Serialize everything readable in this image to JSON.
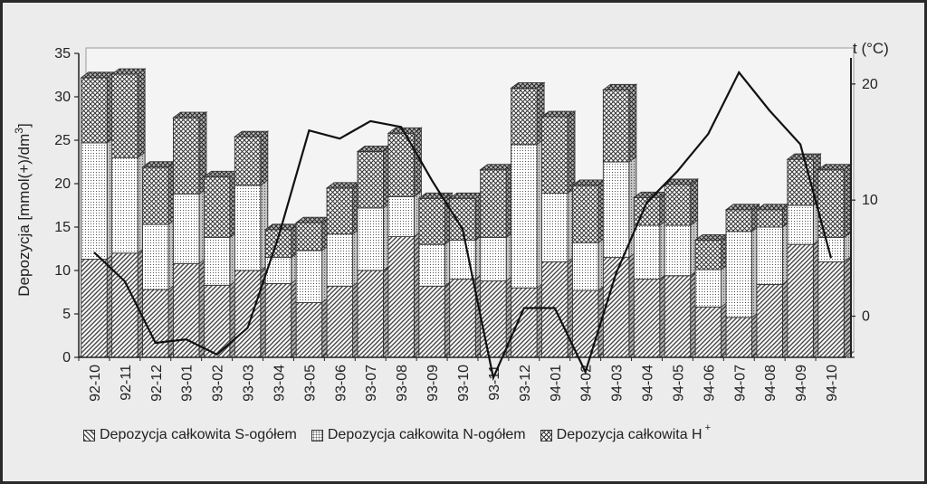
{
  "chart_data": {
    "type": "bar",
    "stacked": true,
    "three_d": true,
    "categories": [
      "92-10",
      "92-11",
      "92-12",
      "93-01",
      "93-02",
      "93-03",
      "93-04",
      "93-05",
      "93-06",
      "93-07",
      "93-08",
      "93-09",
      "93-10",
      "93-11",
      "93-12",
      "94-01",
      "94-02",
      "94-03",
      "94-04",
      "94-05",
      "94-06",
      "94-07",
      "94-08",
      "94-09",
      "94-10"
    ],
    "series": [
      {
        "name": "Depozycja całkowita  S-ogółem",
        "pattern": "diagonal-hatch",
        "values": [
          11.3,
          12.0,
          7.8,
          10.8,
          8.3,
          10.0,
          8.5,
          6.3,
          8.2,
          10.0,
          13.9,
          8.2,
          9.0,
          8.8,
          8.0,
          11.0,
          7.7,
          11.5,
          9.0,
          9.4,
          5.8,
          4.6,
          8.4,
          13.0,
          11.0
        ]
      },
      {
        "name": "Depozycja całkowita  N-ogółem",
        "pattern": "dots",
        "values": [
          13.4,
          11.0,
          7.5,
          8.0,
          5.5,
          9.8,
          3.0,
          6.0,
          6.0,
          7.2,
          4.6,
          4.8,
          4.5,
          5.0,
          16.5,
          7.9,
          5.5,
          11.0,
          6.2,
          5.8,
          4.3,
          9.9,
          6.6,
          4.5,
          2.8
        ]
      },
      {
        "name": "Depozycja całkowita  H",
        "name_superscript": "+",
        "pattern": "crosshatch",
        "values": [
          7.5,
          9.6,
          6.6,
          8.8,
          7.0,
          5.6,
          3.2,
          3.2,
          5.3,
          6.5,
          7.3,
          5.3,
          4.8,
          7.8,
          6.5,
          8.8,
          6.6,
          8.3,
          3.2,
          4.7,
          3.4,
          2.5,
          2.0,
          5.3,
          7.8
        ]
      }
    ],
    "line": {
      "axis": "right",
      "values": [
        5.5,
        3.0,
        -2.3,
        -2.0,
        -3.3,
        -1.0,
        6.8,
        16.0,
        15.3,
        16.8,
        16.3,
        11.7,
        7.5,
        -5.3,
        0.7,
        0.7,
        -4.8,
        3.7,
        9.8,
        12.5,
        15.7,
        21.0,
        17.7,
        14.8,
        5.0
      ]
    },
    "ylabel": "Depozycja  [mmol(+)/dm",
    "ylabel_superscript": "3",
    "ylabel_close": "]",
    "ylim": [
      0,
      35
    ],
    "yticks": [
      "0",
      "5",
      "10",
      "15",
      "20",
      "25",
      "30",
      "35"
    ],
    "y2label": "t (°C)",
    "y2lim": [
      -3,
      21
    ],
    "y2ticks": [
      "0",
      "10",
      "20"
    ],
    "grid": false,
    "legend_position": "bottom"
  },
  "colors": {
    "background": "#ececec",
    "frame": "#2a2a2a",
    "bar_fill": "#ffffff",
    "ink": "#222222",
    "wall": "#f4f4f4"
  }
}
